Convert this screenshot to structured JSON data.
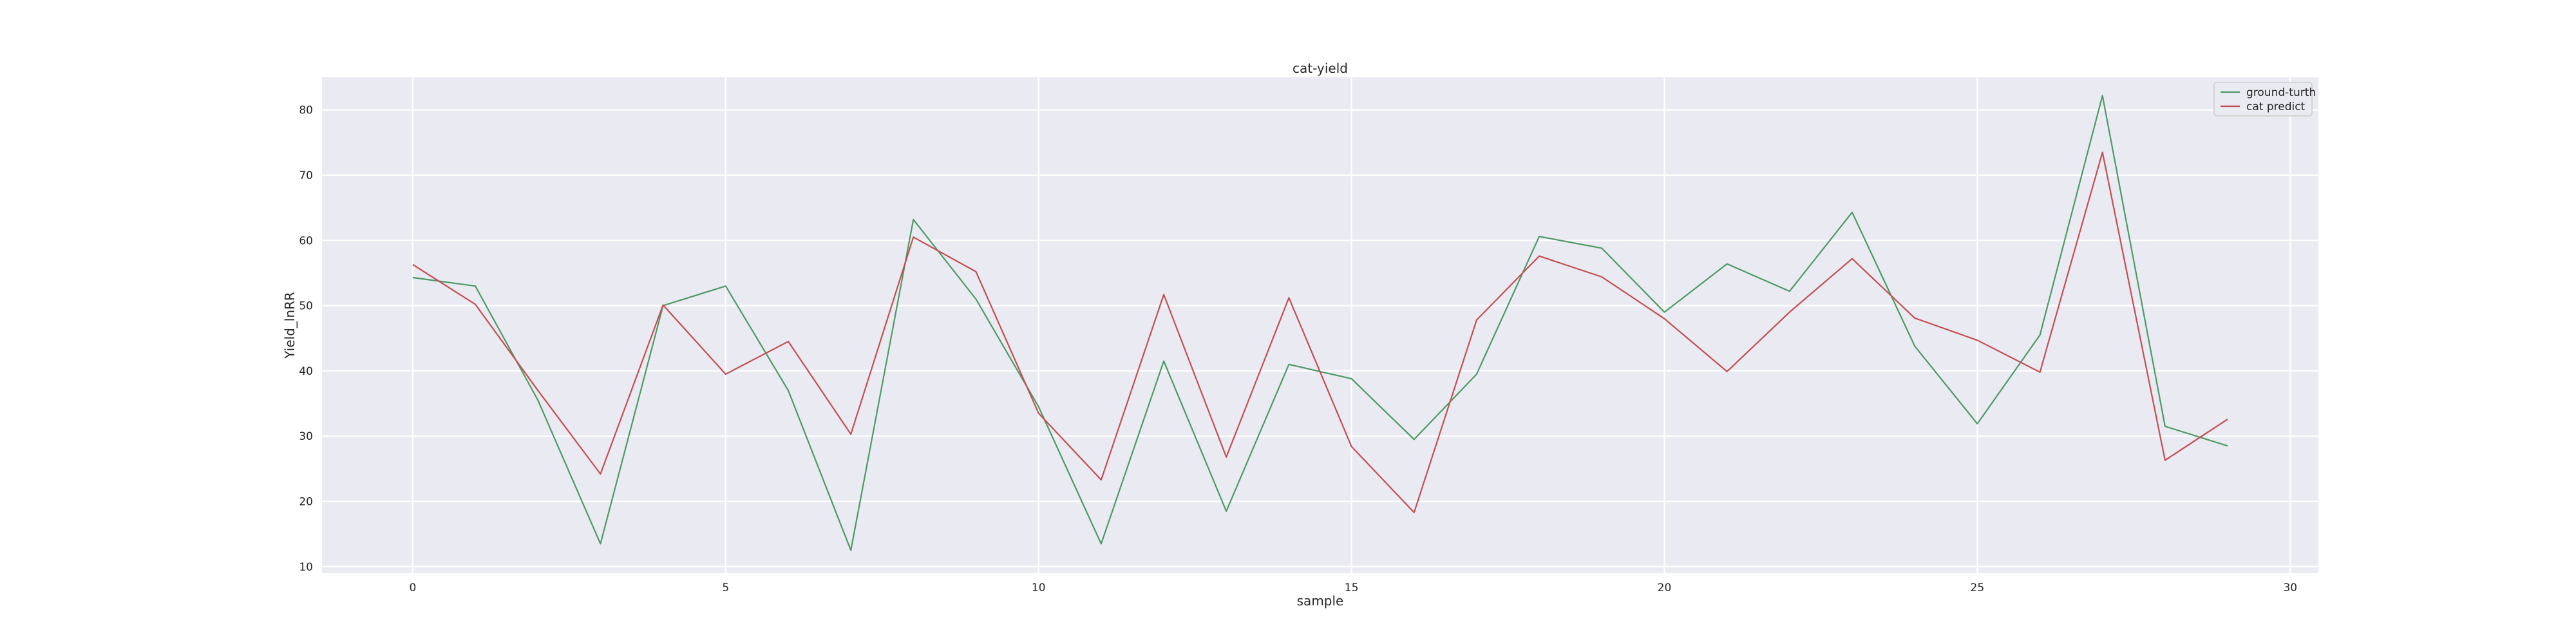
{
  "chart_data": {
    "type": "line",
    "title": "cat-yield",
    "xlabel": "sample",
    "ylabel": "Yield_lnRR",
    "xlim": [
      -1.45,
      30.45
    ],
    "ylim": [
      9,
      85
    ],
    "xticks": [
      0,
      5,
      10,
      15,
      20,
      25,
      30
    ],
    "yticks": [
      10,
      20,
      30,
      40,
      50,
      60,
      70,
      80
    ],
    "grid": true,
    "legend_position": "top-right",
    "x": [
      0,
      1,
      2,
      3,
      4,
      5,
      6,
      7,
      8,
      9,
      10,
      11,
      12,
      13,
      14,
      15,
      16,
      17,
      18,
      19,
      20,
      21,
      22,
      23,
      24,
      25,
      26,
      27,
      28,
      29
    ],
    "series": [
      {
        "name": "ground-turth",
        "color": "#4c9a64",
        "values": [
          54.3,
          53.0,
          35.5,
          13.5,
          50.0,
          53.0,
          37.0,
          12.5,
          63.2,
          51.0,
          34.5,
          13.5,
          41.5,
          18.5,
          41.0,
          38.8,
          29.5,
          39.5,
          60.6,
          58.8,
          49.0,
          56.4,
          52.2,
          64.3,
          43.8,
          31.9,
          45.5,
          82.2,
          31.5,
          28.5
        ]
      },
      {
        "name": "cat predict",
        "color": "#c44e52",
        "values": [
          56.3,
          50.2,
          37.0,
          24.2,
          50.1,
          39.5,
          44.5,
          30.3,
          60.5,
          55.2,
          33.5,
          23.3,
          51.7,
          26.8,
          51.2,
          28.4,
          18.3,
          47.8,
          57.6,
          54.4,
          48.0,
          39.9,
          49.0,
          57.2,
          48.1,
          44.7,
          39.8,
          73.5,
          26.3,
          32.6
        ]
      }
    ]
  }
}
